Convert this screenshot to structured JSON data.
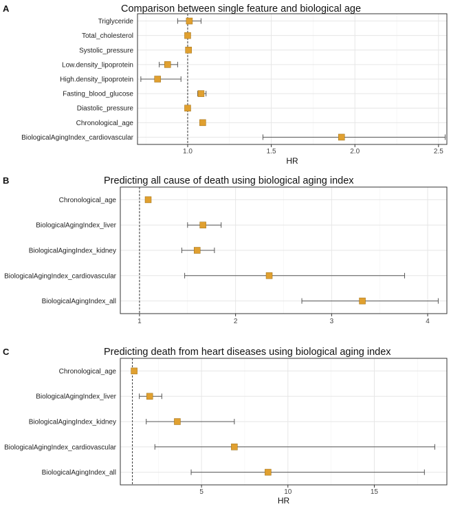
{
  "chart_data": [
    {
      "type": "forest",
      "panel_label": "A",
      "title": "Comparison between single feature and biological age",
      "xlabel": "HR",
      "xlim": [
        0.7,
        2.55
      ],
      "xticks": [
        1.0,
        1.5,
        2.0,
        2.5
      ],
      "xtick_labels": [
        "1.0",
        "1.5",
        "2.0",
        "2.5"
      ],
      "reference_line": 1,
      "grid": true,
      "rows": [
        {
          "label": "Triglyceride",
          "hr": 1.01,
          "lo": 0.94,
          "hi": 1.08
        },
        {
          "label": "Total_cholesterol",
          "hr": 1.0,
          "lo": 0.99,
          "hi": 1.01
        },
        {
          "label": "Systolic_pressure",
          "hr": 1.005,
          "lo": 0.99,
          "hi": 1.02
        },
        {
          "label": "Low.density_lipoprotein",
          "hr": 0.88,
          "lo": 0.83,
          "hi": 0.94
        },
        {
          "label": "High.density_lipoprotein",
          "hr": 0.82,
          "lo": 0.72,
          "hi": 0.96
        },
        {
          "label": "Fasting_blood_glucose",
          "hr": 1.08,
          "lo": 1.06,
          "hi": 1.11
        },
        {
          "label": "Diastolic_pressure",
          "hr": 1.0,
          "lo": 0.99,
          "hi": 1.01
        },
        {
          "label": "Chronological_age",
          "hr": 1.09,
          "lo": 1.08,
          "hi": 1.1
        },
        {
          "label": "BiologicalAgingIndex_cardiovascular",
          "hr": 1.92,
          "lo": 1.45,
          "hi": 2.54
        }
      ]
    },
    {
      "type": "forest",
      "panel_label": "B",
      "title": "Predicting all cause of death using biological aging index",
      "xlabel": "",
      "xlim": [
        0.8,
        4.2
      ],
      "xticks": [
        1,
        2,
        3,
        4
      ],
      "xtick_labels": [
        "1",
        "2",
        "3",
        "4"
      ],
      "reference_line": 1,
      "grid": true,
      "rows": [
        {
          "label": "Chronological_age",
          "hr": 1.09,
          "lo": 1.07,
          "hi": 1.11
        },
        {
          "label": "BiologicalAgingIndex_liver",
          "hr": 1.66,
          "lo": 1.5,
          "hi": 1.85
        },
        {
          "label": "BiologicalAgingIndex_kidney",
          "hr": 1.6,
          "lo": 1.44,
          "hi": 1.78
        },
        {
          "label": "BiologicalAgingIndex_cardiovascular",
          "hr": 2.35,
          "lo": 1.47,
          "hi": 3.76
        },
        {
          "label": "BiologicalAgingIndex_all",
          "hr": 3.32,
          "lo": 2.69,
          "hi": 4.11
        }
      ]
    },
    {
      "type": "forest",
      "panel_label": "C",
      "title": "Predicting death from heart diseases using  biological aging index",
      "xlabel": "HR",
      "xlim": [
        0.3,
        19.2
      ],
      "xticks": [
        5,
        10,
        15
      ],
      "xtick_labels": [
        "5",
        "10",
        "15"
      ],
      "reference_line": 1,
      "grid": true,
      "rows": [
        {
          "label": "Chronological_age",
          "hr": 1.1,
          "lo": 1.0,
          "hi": 1.2
        },
        {
          "label": "BiologicalAgingIndex_liver",
          "hr": 2.0,
          "lo": 1.4,
          "hi": 2.7
        },
        {
          "label": "BiologicalAgingIndex_kidney",
          "hr": 3.6,
          "lo": 1.8,
          "hi": 6.9
        },
        {
          "label": "BiologicalAgingIndex_cardiovascular",
          "hr": 6.9,
          "lo": 2.3,
          "hi": 18.5
        },
        {
          "label": "BiologicalAgingIndex_all",
          "hr": 8.85,
          "lo": 4.4,
          "hi": 17.9
        }
      ]
    }
  ],
  "style": {
    "point_color": "#E0A030",
    "point_stroke": "#9A6A10",
    "line_color": "#555555",
    "grid_major": "#e6e6e6",
    "grid_minor": "#f2f2f2",
    "text_color": "#222222",
    "title_color": "#111111"
  }
}
